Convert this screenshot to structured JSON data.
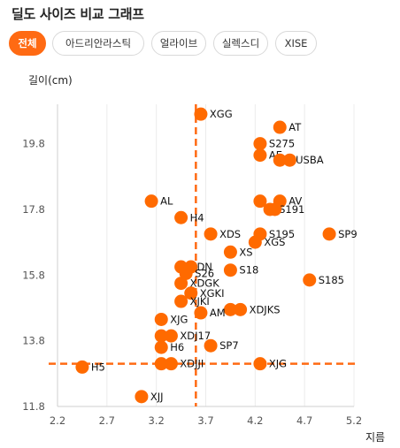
{
  "header": {
    "title": "딜도 사이즈 비교 그래프"
  },
  "tabs": [
    {
      "label": "전체",
      "active": true
    },
    {
      "label": "아드리안라스틱",
      "active": false
    },
    {
      "label": "얼라이브",
      "active": false
    },
    {
      "label": "실렉스디",
      "active": false
    },
    {
      "label": "XISE",
      "active": false
    }
  ],
  "colors": {
    "accent": "#ff6a13",
    "point": "#ff6a00"
  },
  "chart_data": {
    "type": "scatter",
    "xlabel": "지름",
    "ylabel": "길이(cm)",
    "xlim": [
      2.2,
      5.2
    ],
    "ylim": [
      11.8,
      21.0
    ],
    "xticks": [
      "2.2",
      "2.7",
      "3.2",
      "3.7",
      "4.2",
      "4.7",
      "5.2"
    ],
    "yticks": [
      "11.8",
      "13.8",
      "15.8",
      "17.8",
      "19.8"
    ],
    "reference_lines": {
      "x": 3.6,
      "y": 13.1
    },
    "points": [
      {
        "label": "XGG",
        "x": 3.65,
        "y": 20.7
      },
      {
        "label": "AT",
        "x": 4.45,
        "y": 20.3
      },
      {
        "label": "S275",
        "x": 4.25,
        "y": 19.8
      },
      {
        "label": "AE",
        "x": 4.25,
        "y": 19.45
      },
      {
        "label": "XUSBA",
        "x": 4.45,
        "y": 19.3
      },
      {
        "label": "",
        "x": 4.55,
        "y": 19.3
      },
      {
        "label": "AL",
        "x": 3.15,
        "y": 18.05
      },
      {
        "label": "AV",
        "x": 4.45,
        "y": 18.05
      },
      {
        "label": "",
        "x": 4.25,
        "y": 18.05
      },
      {
        "label": "S191",
        "x": 4.35,
        "y": 17.8
      },
      {
        "label": "",
        "x": 4.4,
        "y": 17.8
      },
      {
        "label": "H4",
        "x": 3.45,
        "y": 17.55
      },
      {
        "label": "XDS",
        "x": 3.75,
        "y": 17.05
      },
      {
        "label": "S195",
        "x": 4.25,
        "y": 17.05
      },
      {
        "label": "SP9",
        "x": 4.95,
        "y": 17.05
      },
      {
        "label": "XGS",
        "x": 4.2,
        "y": 16.8
      },
      {
        "label": "XS",
        "x": 3.95,
        "y": 16.5
      },
      {
        "label": "XDN",
        "x": 3.45,
        "y": 16.05
      },
      {
        "label": "",
        "x": 3.55,
        "y": 16.05
      },
      {
        "label": "S18",
        "x": 3.95,
        "y": 15.95
      },
      {
        "label": "S26",
        "x": 3.5,
        "y": 15.85
      },
      {
        "label": "S185",
        "x": 4.75,
        "y": 15.65
      },
      {
        "label": "XDGK",
        "x": 3.45,
        "y": 15.55
      },
      {
        "label": "XGKI",
        "x": 3.55,
        "y": 15.25
      },
      {
        "label": "XJKI",
        "x": 3.45,
        "y": 15.0
      },
      {
        "label": "XDJKS",
        "x": 4.05,
        "y": 14.75
      },
      {
        "label": "",
        "x": 3.95,
        "y": 14.75
      },
      {
        "label": "AM",
        "x": 3.65,
        "y": 14.65
      },
      {
        "label": "XJG",
        "x": 3.25,
        "y": 14.45
      },
      {
        "label": "XDJ17",
        "x": 3.35,
        "y": 13.95
      },
      {
        "label": "",
        "x": 3.25,
        "y": 13.95
      },
      {
        "label": "SP7",
        "x": 3.75,
        "y": 13.65
      },
      {
        "label": "H6",
        "x": 3.25,
        "y": 13.6
      },
      {
        "label": "XDJJI",
        "x": 3.35,
        "y": 13.1
      },
      {
        "label": "",
        "x": 3.25,
        "y": 13.1
      },
      {
        "label": "XJG",
        "x": 4.25,
        "y": 13.1
      },
      {
        "label": "H5",
        "x": 2.45,
        "y": 13.0
      },
      {
        "label": "XJJ",
        "x": 3.05,
        "y": 12.1
      }
    ]
  }
}
